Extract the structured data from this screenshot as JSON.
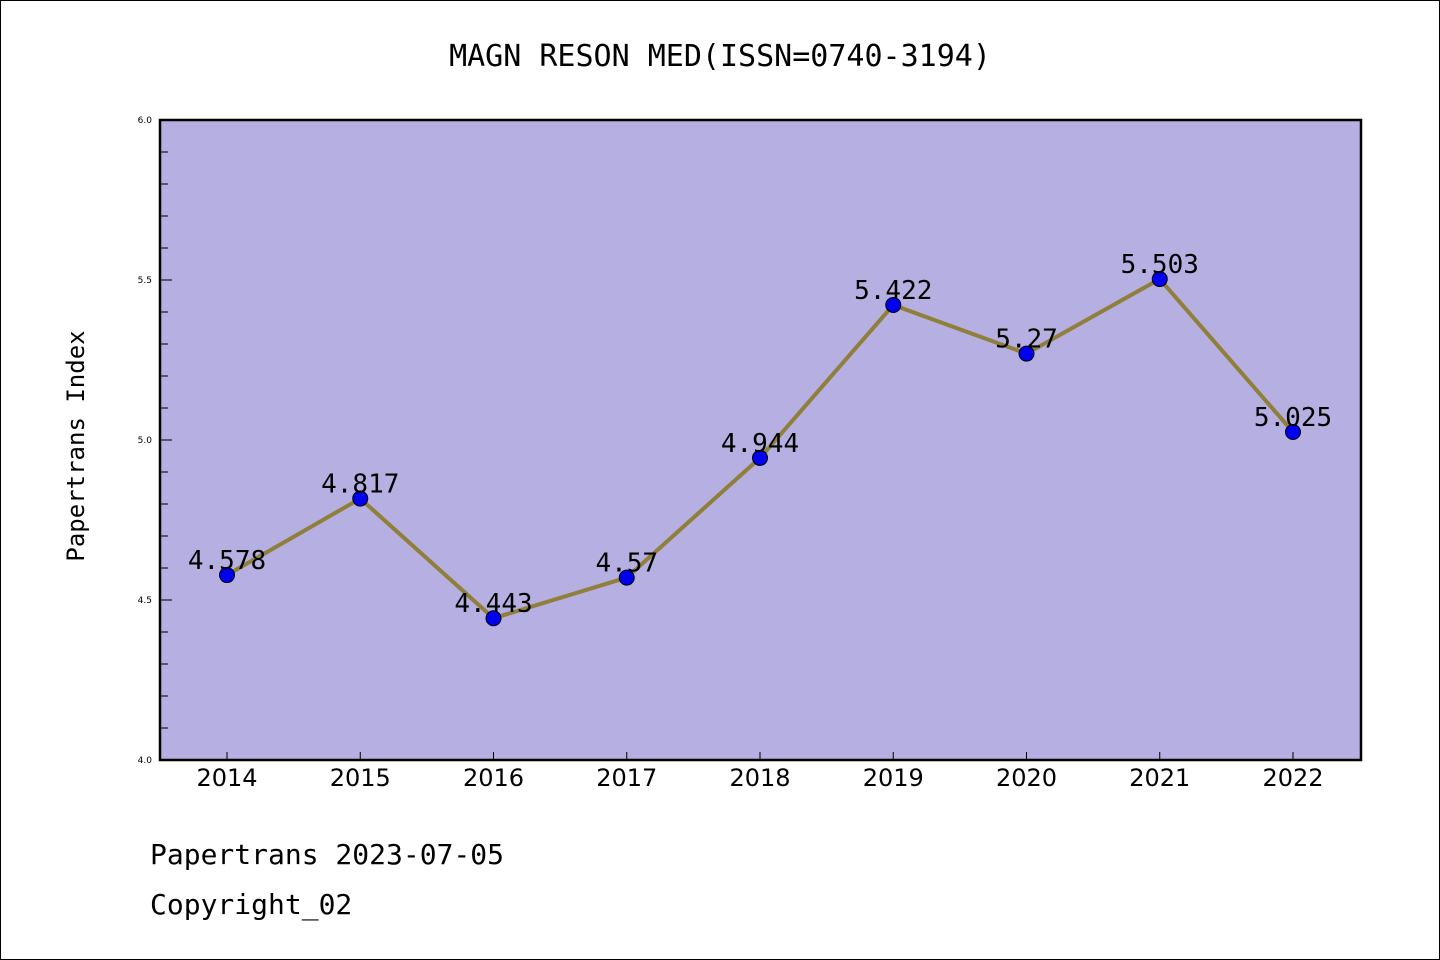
{
  "chart_data": {
    "type": "line",
    "title": "MAGN RESON MED(ISSN=0740-3194)",
    "xlabel": "",
    "ylabel": "Papertrans Index",
    "categories": [
      "2014",
      "2015",
      "2016",
      "2017",
      "2018",
      "2019",
      "2020",
      "2021",
      "2022"
    ],
    "series": [
      {
        "values": [
          4.578,
          4.817,
          4.443,
          4.57,
          4.944,
          5.422,
          5.27,
          5.503,
          5.025
        ],
        "data_labels": [
          "4.578",
          "4.817",
          "4.443",
          "4.57",
          "4.944",
          "5.422",
          "5.27",
          "5.503",
          "5.025"
        ]
      }
    ],
    "ylim": [
      4.0,
      6.0
    ],
    "y_ticks": [
      "4.0",
      "4.5",
      "5.0",
      "5.5",
      "6.0"
    ],
    "y_tick_values": [
      4.0,
      4.5,
      5.0,
      5.5,
      6.0
    ],
    "grid": false,
    "colors": {
      "plot_background": "#b5afe2",
      "line": "#8f7f3a",
      "marker": "#0000ee"
    }
  },
  "footer": {
    "line1": "Papertrans 2023-07-05",
    "line2": "Copyright_02"
  }
}
